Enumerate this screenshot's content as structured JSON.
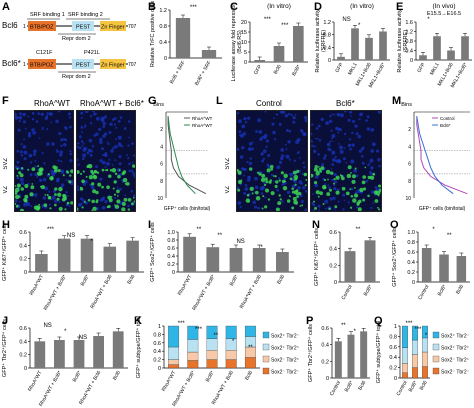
{
  "panel_letters": [
    "A",
    "B",
    "C",
    "D",
    "E",
    "F",
    "G",
    "H",
    "I",
    "J",
    "K",
    "L",
    "M",
    "N",
    "O",
    "P",
    "Q"
  ],
  "panel_a": {
    "row1_label": "Bcl6",
    "row2_label": "Bcl6*",
    "srf_binding_1": "SRF binding 1",
    "srf_binding_2": "SRF binding 2",
    "btb": "BTB/POZ",
    "pest": "PEST",
    "zn": "Zn Finger",
    "repr": "Repr dom 2",
    "start": "1",
    "end": "707",
    "mut1": "C121F",
    "mut2": "P421L"
  },
  "micro_f": {
    "left": "RhoA^WT",
    "right": "RhoA^WT + Bcl6*",
    "vz": "VZ",
    "svz": "SVZ"
  },
  "micro_l": {
    "left": "Control",
    "right": "Bcl6*",
    "vz": "VZ",
    "svz": "SVZ"
  },
  "panel_g": {
    "bins_label": "Bins",
    "xlabel": "GFP⁺ cells (bin/total)",
    "legend": [
      "RhoA^WT",
      "RhoA^WT + Bcl6*"
    ],
    "yticks": [
      "2",
      "4",
      "6",
      "8",
      "10"
    ],
    "xticks": [
      "0",
      "0.1",
      "0.2",
      "0.3",
      "0.4"
    ],
    "zone_labels": [
      "SVZ",
      "VZ"
    ]
  },
  "panel_m": {
    "bins_label": "Bins",
    "xlabel": "GFP⁺ cells (bin/total)",
    "legend": [
      "Control",
      "Bcl6*"
    ],
    "yticks": [
      "2",
      "4",
      "6",
      "8",
      "10"
    ],
    "xticks": [
      "0",
      "0.1",
      "0.2",
      "0.3",
      "0.4"
    ],
    "zone_labels": [
      "SVZ",
      "VZ"
    ]
  },
  "chart_data": [
    {
      "panel": "B",
      "type": "bar",
      "categories": [
        "Bcl6 + SRF",
        "Bcl6* + SRF"
      ],
      "values": [
        1.0,
        0.2
      ],
      "ylabel": "Relative TrFC positive cells",
      "ylim": [
        0,
        1.2
      ],
      "yticks": [
        "0",
        "0.4",
        "0.8",
        "1.2"
      ],
      "annotations": [
        "***"
      ]
    },
    {
      "panel": "C",
      "type": "bar",
      "title": "(In vitro)",
      "categories": [
        "GFP",
        "Bcl6",
        "Bcl6*"
      ],
      "values": [
        1,
        8,
        18
      ],
      "ylabel": "Luciferase assay fold repression",
      "sub_ylabel": "(Bcl6 RS)",
      "ylim": [
        0,
        20
      ],
      "yticks": [
        "0",
        "5",
        "10",
        "15",
        "20"
      ],
      "annotations": [
        "***",
        "***"
      ]
    },
    {
      "panel": "D",
      "type": "bar",
      "title": "(In vitro)",
      "categories": [
        "GFP",
        "MKL1",
        "MKL1+Bcl6",
        "MKL1+Bcl6*"
      ],
      "values": [
        0.1,
        1.0,
        0.7,
        0.9
      ],
      "ylabel": "Relative luciferase activity",
      "sub_ylabel": "(SRFRE)",
      "ylim": [
        0,
        1.2
      ],
      "yticks": [
        "0",
        "0.4",
        "0.8",
        "1.2"
      ],
      "annotations": [
        "NS",
        "*"
      ]
    },
    {
      "panel": "E",
      "type": "bar",
      "title": "(In vivo)",
      "subtitle": "E15.5→E16.5",
      "categories": [
        "GFP",
        "MKL1",
        "MKL1+Bcl6",
        "MKL1+Bcl6*"
      ],
      "values": [
        0.2,
        1.0,
        0.4,
        1.0
      ],
      "ylabel": "Relative luciferase activity",
      "sub_ylabel": "(SRFRE)",
      "ylim": [
        0,
        1.6
      ],
      "yticks": [
        "0",
        "0.4",
        "0.8",
        "1.2",
        "1.6"
      ],
      "annotations": [
        "*"
      ]
    },
    {
      "panel": "H",
      "type": "bar",
      "categories": [
        "RhoA^WT",
        "RhoA^WT + Bcl6*",
        "Bcl6*",
        "RhoA^WT + Bcl6",
        "Bcl6"
      ],
      "values": [
        0.27,
        0.5,
        0.5,
        0.38,
        0.47
      ],
      "ylabel": "GFP⁺ Ki67⁺/GFP⁺ cells",
      "ylim": [
        0,
        0.6
      ],
      "yticks": [
        "0",
        "0.2",
        "0.4",
        "0.6"
      ],
      "annotations": [
        "***",
        "NS",
        "*"
      ]
    },
    {
      "panel": "I",
      "type": "bar",
      "categories": [
        "RhoA^WT",
        "RhoA^WT + Bcl6*",
        "Bcl6*",
        "RhoA^WT + Bcl6",
        "Bcl6"
      ],
      "values": [
        0.88,
        0.62,
        0.6,
        0.6,
        0.5
      ],
      "ylabel": "GFP⁺ Sox2⁺/GFP⁺ cells",
      "ylim": [
        0,
        1.0
      ],
      "yticks": [
        "0",
        "0.2",
        "0.4",
        "0.6",
        "0.8",
        "1.0"
      ],
      "annotations": [
        "**",
        "**",
        "NS",
        "*"
      ]
    },
    {
      "panel": "J",
      "type": "bar",
      "categories": [
        "RhoA^WT",
        "RhoA^WT + Bcl6*",
        "Bcl6*",
        "RhoA^WT + Bcl6",
        "Bcl6"
      ],
      "values": [
        0.4,
        0.42,
        0.42,
        0.48,
        0.55
      ],
      "ylabel": "GFP⁺ Tbr2⁺/GFP⁺ cells",
      "ylim": [
        0,
        0.6
      ],
      "yticks": [
        "0",
        "0.2",
        "0.4",
        "0.6"
      ],
      "annotations": [
        "NS",
        "*",
        "NS"
      ]
    },
    {
      "panel": "K",
      "type": "bar",
      "categories": [
        "RhoA^WT",
        "RhoA^WT + Bcl6*",
        "Bcl6*",
        "RhoA^WT + Bcl6",
        "Bcl6"
      ],
      "ylabel": "GFP⁺ subtype/GFP⁺ total",
      "ylim": [
        0,
        1
      ],
      "yticks": [
        "0",
        "0.2",
        "0.4",
        "0.6",
        "0.8",
        "1"
      ],
      "series": [
        {
          "name": "Sox2⁻ Tbr2⁻",
          "values": [
            0.08,
            0.18,
            0.2,
            0.2,
            0.25
          ]
        },
        {
          "name": "Sox2⁻ Tbr2⁺",
          "values": [
            0.12,
            0.2,
            0.22,
            0.22,
            0.25
          ]
        },
        {
          "name": "Sox2⁺ Tbr2⁺",
          "values": [
            0.3,
            0.3,
            0.28,
            0.28,
            0.25
          ]
        },
        {
          "name": "Sox2⁺ Tbr2⁻",
          "values": [
            0.5,
            0.32,
            0.3,
            0.3,
            0.25
          ]
        }
      ],
      "annotations": [
        "***",
        "***",
        "**",
        "*",
        "**"
      ]
    },
    {
      "panel": "N",
      "type": "bar",
      "categories": [
        "Control",
        "Bcl6*"
      ],
      "values": [
        0.37,
        0.5
      ],
      "ylabel": "GFP⁺ Ki67⁺/GFP⁺ cells",
      "ylim": [
        0,
        0.6
      ],
      "yticks": [
        "0",
        "0.2",
        "0.4",
        "0.6"
      ],
      "annotations": [
        "**"
      ]
    },
    {
      "panel": "O",
      "type": "bar",
      "categories": [
        "Control",
        "Bcl6*",
        "Bcl6"
      ],
      "values": [
        0.68,
        0.55,
        0.52
      ],
      "ylabel": "GFP⁺ Sox2⁺/GFP⁺ cells",
      "ylim": [
        0,
        1.0
      ],
      "yticks": [
        "0",
        "0.2",
        "0.4",
        "0.6",
        "0.8",
        "1.0"
      ],
      "annotations": [
        "*",
        "**"
      ]
    },
    {
      "panel": "P",
      "type": "bar",
      "categories": [
        "Control",
        "Bcl6*",
        "Bcl6"
      ],
      "values": [
        0.44,
        0.52,
        0.56
      ],
      "ylabel": "GFP⁺ Tbr2⁺/GFP⁺ cells",
      "ylim": [
        0,
        0.6
      ],
      "yticks": [
        "0",
        "0.2",
        "0.4",
        "0.6"
      ],
      "annotations": [
        "**",
        "*"
      ]
    },
    {
      "panel": "Q",
      "type": "bar",
      "categories": [
        "Control",
        "Bcl6*",
        "Bcl6"
      ],
      "ylabel": "GFP⁺ subtype/GFP⁺ total",
      "ylim": [
        0,
        1
      ],
      "yticks": [
        "0",
        "0.2",
        "0.4",
        "0.6",
        "0.8",
        "1"
      ],
      "series": [
        {
          "name": "Sox2⁻ Tbr2⁻",
          "values": [
            0.1,
            0.2,
            0.22
          ]
        },
        {
          "name": "Sox2⁻ Tbr2⁺",
          "values": [
            0.18,
            0.25,
            0.28
          ]
        },
        {
          "name": "Sox2⁺ Tbr2⁺",
          "values": [
            0.3,
            0.28,
            0.27
          ]
        },
        {
          "name": "Sox2⁺ Tbr2⁻",
          "values": [
            0.42,
            0.27,
            0.23
          ]
        }
      ],
      "annotations": [
        "***",
        "***",
        "*"
      ]
    }
  ],
  "colors": {
    "bar": "#7a7a7a",
    "gfp": "#39d353",
    "dapi": "#1632b8",
    "stack": [
      "#e8732b",
      "#f7c9a8",
      "#b8e2f2",
      "#2fb5e6"
    ],
    "green_line": "#2a8b4a",
    "purple_line": "#b048b5"
  }
}
